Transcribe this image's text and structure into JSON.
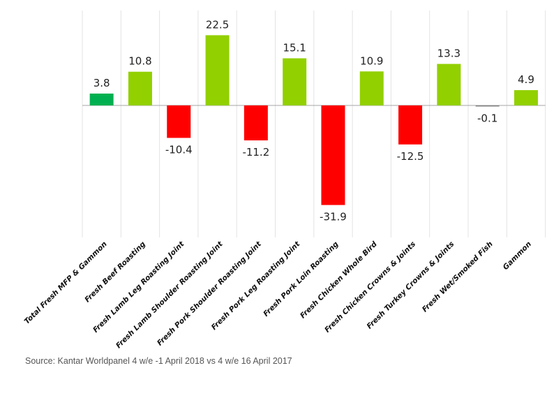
{
  "chart_data": {
    "type": "bar",
    "categories": [
      "Total Fresh MFP & Gammon",
      "Fresh Beef Roasting",
      "Fresh Lamb Leg Roasting Joint",
      "Fresh Lamb Shoulder Roasting Joint",
      "Fresh Pork Shoulder Roasting Joint",
      "Fresh Pork Leg Roasting Joint",
      "Fresh Pork Loin Roasting",
      "Fresh Chicken Whole Bird",
      "Fresh Chicken Crowns & Joints",
      "Fresh Turkey Crowns & Joints",
      "Fresh Wet/Smoked Fish",
      "Gammon"
    ],
    "values": [
      3.8,
      10.8,
      -10.4,
      22.5,
      -11.2,
      15.1,
      -31.9,
      10.9,
      -12.5,
      13.3,
      -0.1,
      4.9
    ],
    "value_labels": [
      "3.8",
      "10.8",
      "-10.4",
      "22.5",
      "-11.2",
      "15.1",
      "-31.9",
      "10.9",
      "-12.5",
      "13.3",
      "-0.1",
      "4.9"
    ],
    "colors": {
      "total": "#00b050",
      "positive": "#92d000",
      "negative": "#ff0000",
      "small_negative": "#808080"
    },
    "grid": "vertical category separators",
    "legend": "none"
  },
  "source": "Source: Kantar Worldpanel 4 w/e -1 April 2018 vs 4 w/e 16 April 2017"
}
